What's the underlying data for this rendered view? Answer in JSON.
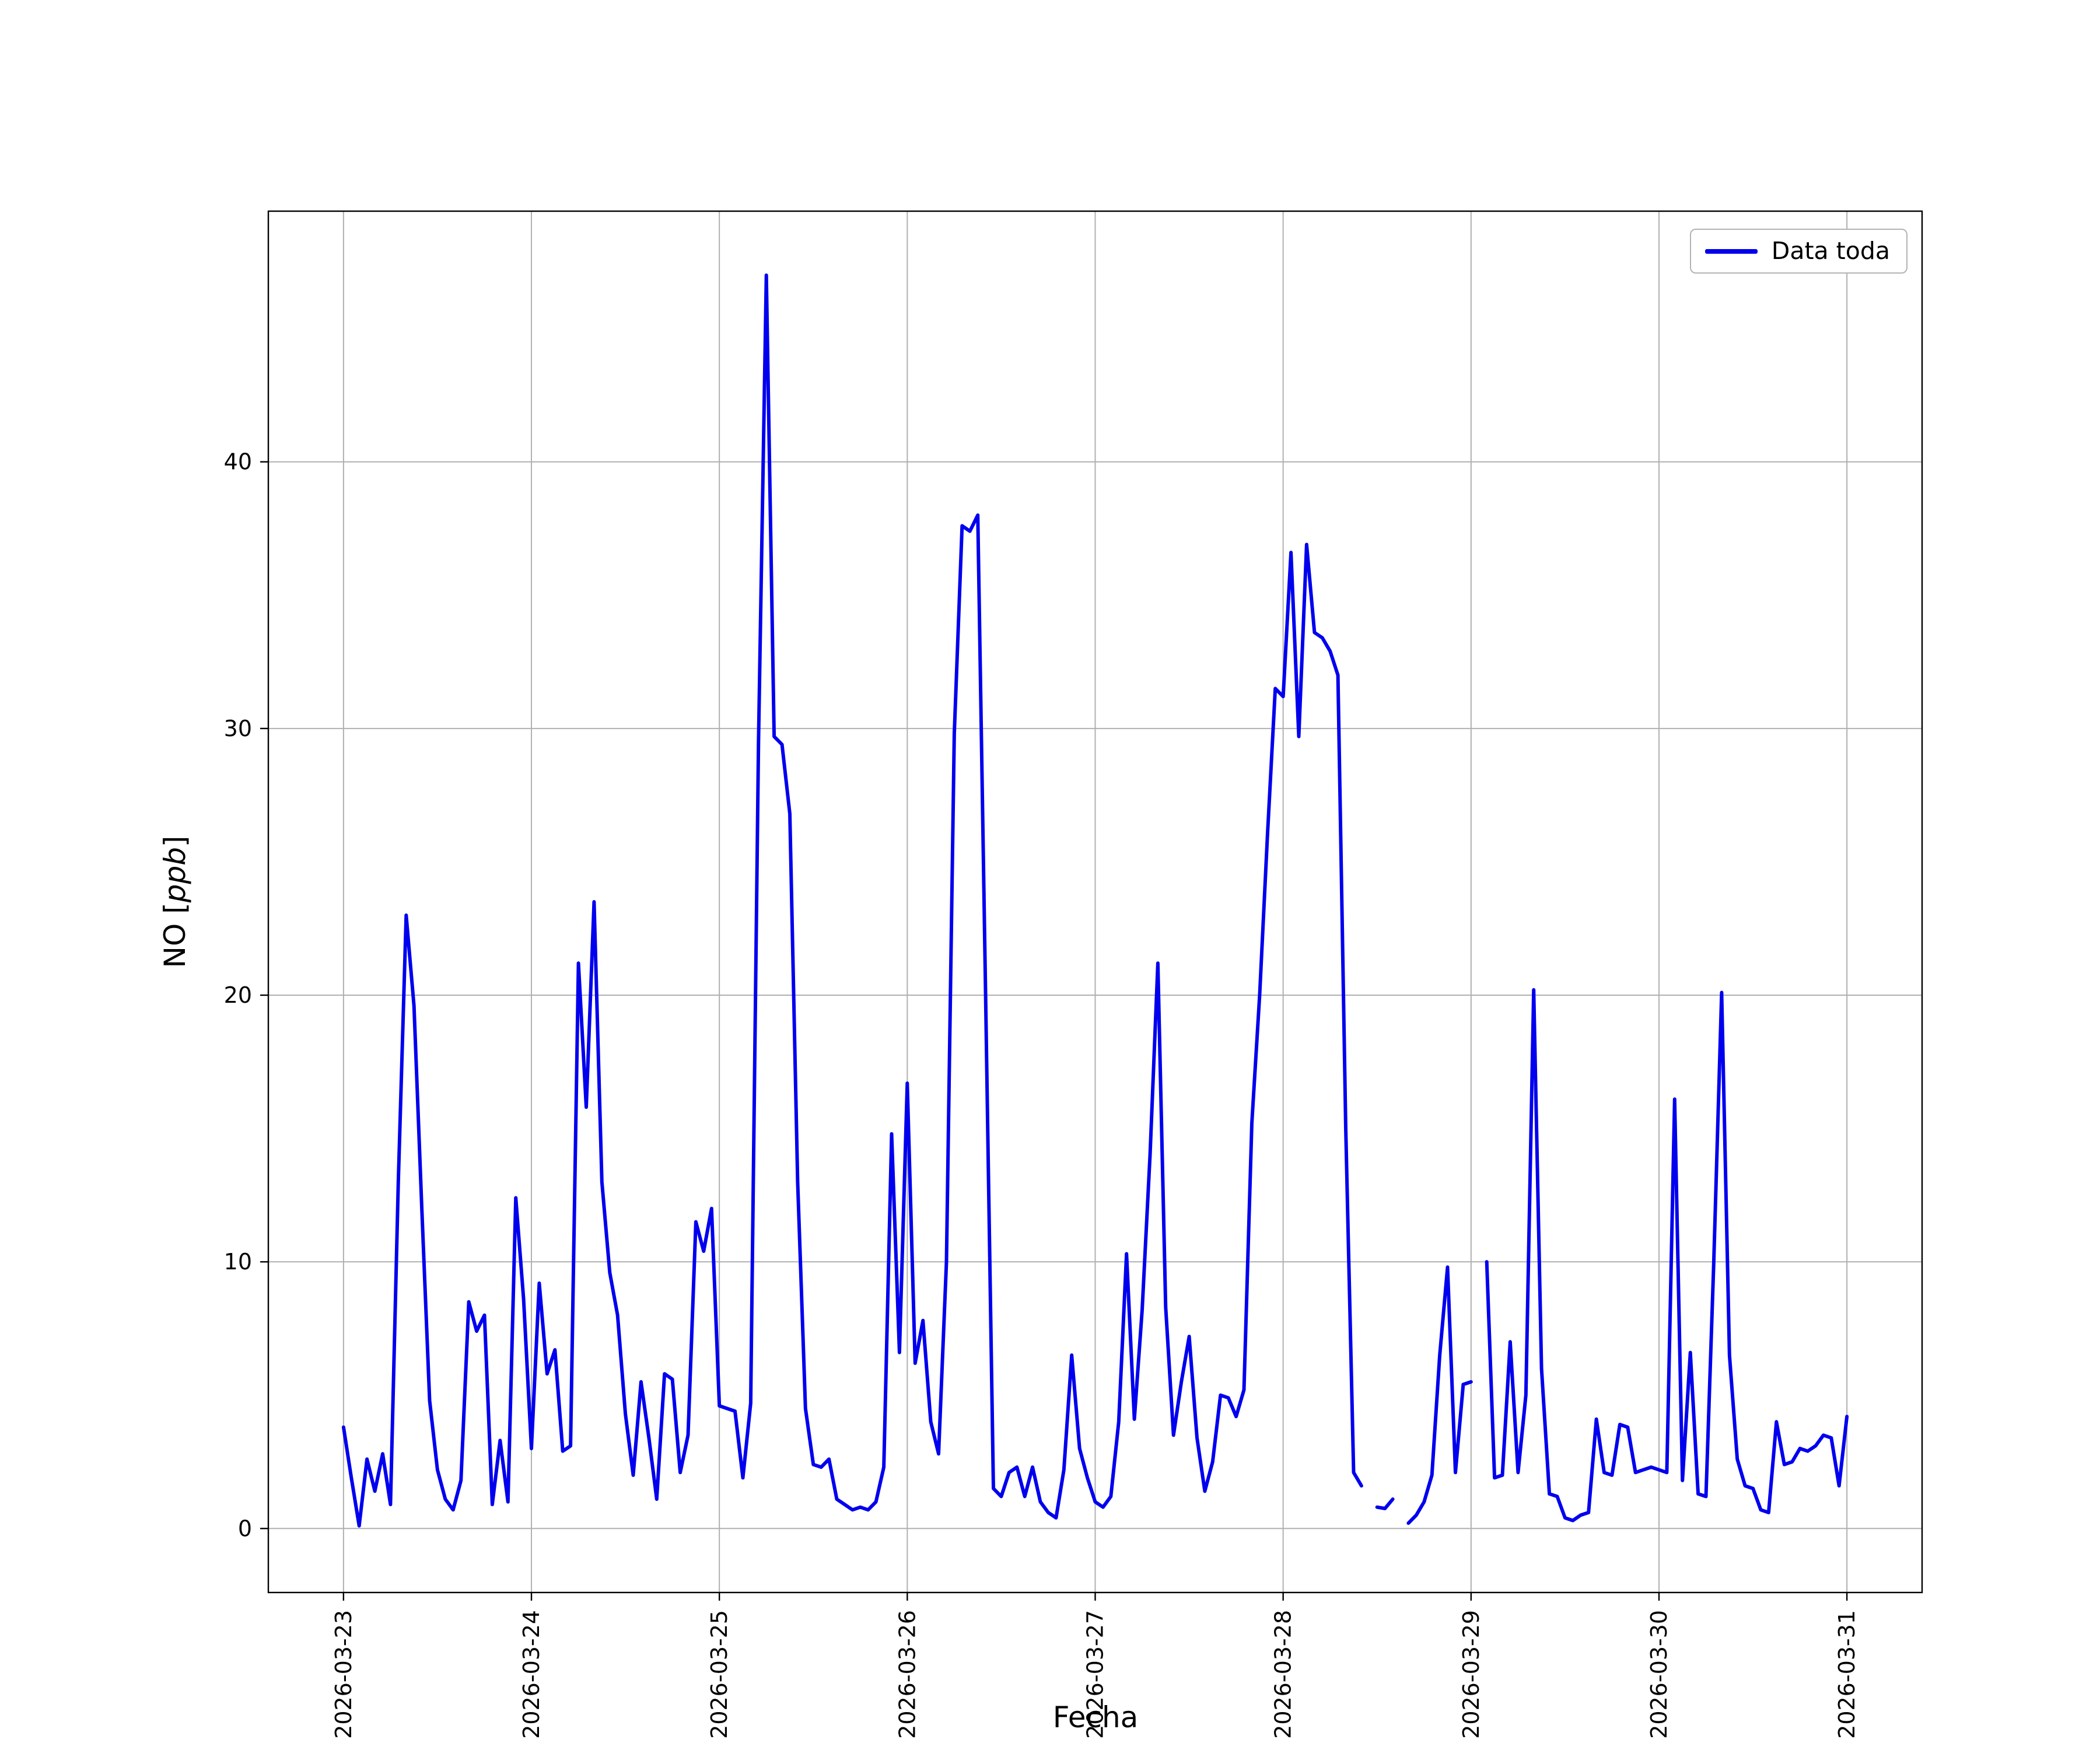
{
  "figure": {
    "background": "#ffffff",
    "xlabel": "Fecha",
    "ylabel_parts": {
      "prefix": "NO [",
      "unit": "ppb",
      "suffix": "]"
    }
  },
  "chart_data": {
    "type": "line",
    "title": "",
    "xlabel": "Fecha",
    "ylabel": "NO [ppb]",
    "legend_label": "Data toda",
    "legend_position": "upper right",
    "grid": true,
    "line_color": "#0000ee",
    "grid_color": "#b0b0b0",
    "axis_color": "#000000",
    "x_unit": "hours since 2026-03-23 00:00 (one sample per hour, null = gap in data)",
    "x_tick_hours": [
      0,
      24,
      48,
      72,
      96,
      120,
      144,
      168,
      192
    ],
    "x_tick_labels": [
      "2026-03-23",
      "2026-03-24",
      "2026-03-25",
      "2026-03-26",
      "2026-03-27",
      "2026-03-28",
      "2026-03-29",
      "2026-03-30",
      "2026-03-31"
    ],
    "y_ticks": [
      0,
      10,
      20,
      30,
      40
    ],
    "xlim_hours": [
      -9.6,
      201.6
    ],
    "ylim": [
      -2.4,
      49.4
    ],
    "series": [
      {
        "name": "Data toda",
        "values": [
          3.8,
          1.9,
          0.1,
          2.6,
          1.4,
          2.8,
          0.9,
          13.0,
          23.0,
          19.6,
          12.0,
          4.8,
          2.2,
          1.1,
          0.7,
          1.8,
          8.5,
          7.4,
          8.0,
          0.9,
          3.3,
          1.0,
          12.4,
          8.6,
          3.0,
          9.2,
          5.8,
          6.7,
          2.9,
          3.1,
          21.2,
          15.8,
          23.5,
          13.0,
          9.6,
          8.0,
          4.3,
          2.0,
          5.5,
          3.4,
          1.1,
          5.8,
          5.6,
          2.1,
          3.5,
          11.5,
          10.4,
          12.0,
          4.6,
          4.5,
          4.4,
          1.9,
          4.7,
          29.5,
          47.0,
          29.7,
          29.4,
          26.8,
          13.0,
          4.5,
          2.4,
          2.3,
          2.6,
          1.1,
          0.9,
          0.7,
          0.8,
          0.7,
          1.0,
          2.3,
          14.8,
          6.6,
          16.7,
          6.2,
          7.8,
          4.0,
          2.8,
          10.0,
          29.8,
          37.6,
          37.4,
          38.0,
          20.0,
          1.5,
          1.2,
          2.1,
          2.3,
          1.2,
          2.3,
          1.0,
          0.6,
          0.4,
          2.2,
          6.5,
          3.0,
          1.9,
          1.0,
          0.8,
          1.2,
          4.0,
          10.3,
          4.1,
          8.2,
          14.0,
          21.2,
          8.3,
          3.5,
          5.5,
          7.2,
          3.4,
          1.4,
          2.5,
          5.0,
          4.9,
          4.2,
          5.2,
          15.2,
          20.0,
          26.0,
          31.5,
          31.2,
          36.6,
          29.7,
          36.9,
          33.6,
          33.4,
          32.9,
          32.0,
          15.0,
          2.1,
          1.6,
          null,
          0.8,
          0.75,
          1.1,
          null,
          0.2,
          0.5,
          1.0,
          2.0,
          6.5,
          9.8,
          2.1,
          5.4,
          5.5,
          null,
          10.0,
          1.9,
          2.0,
          7.0,
          2.1,
          5.0,
          20.2,
          6.0,
          1.3,
          1.2,
          0.4,
          0.3,
          0.5,
          0.6,
          4.1,
          2.1,
          2.0,
          3.9,
          3.8,
          2.1,
          2.2,
          2.3,
          2.2,
          2.1,
          16.1,
          1.8,
          6.6,
          1.3,
          1.2,
          10.0,
          20.1,
          6.5,
          2.6,
          1.6,
          1.5,
          0.7,
          0.6,
          4.0,
          2.4,
          2.5,
          3.0,
          2.9,
          3.1,
          3.5,
          3.4,
          1.6,
          4.2
        ]
      }
    ]
  }
}
